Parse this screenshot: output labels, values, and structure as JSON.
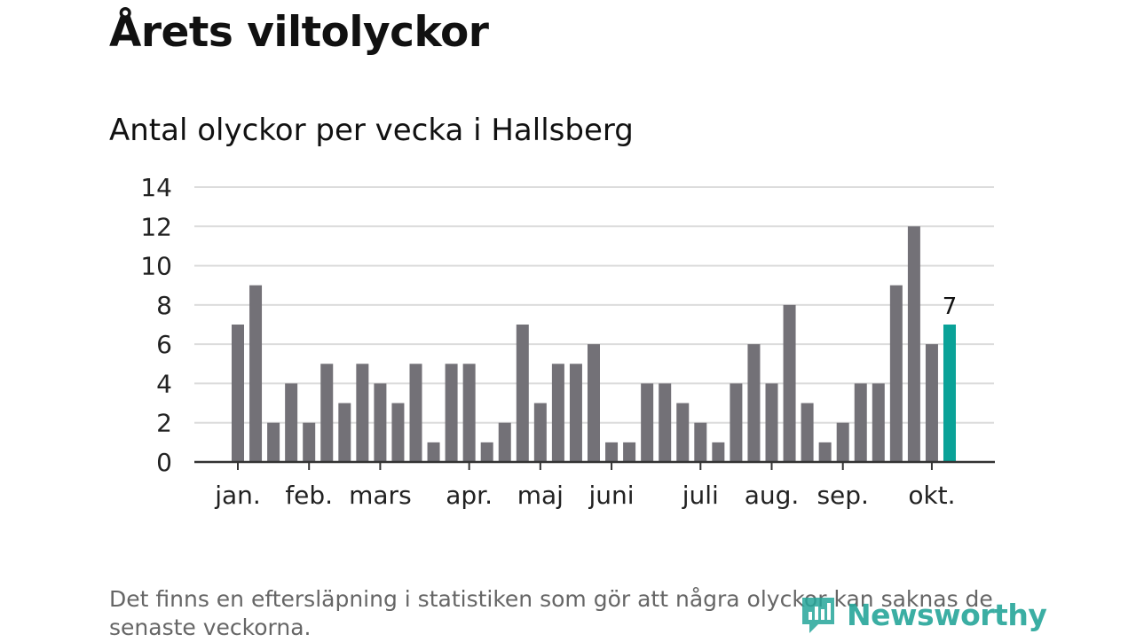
{
  "title": "Årets viltolyckor",
  "footnote": "Det finns en eftersläpning i statistiken som gör att några olyckor kan saknas de senaste veckorna.",
  "logo": {
    "text": "Newsworthy",
    "icon": "newsworthy-logo-icon",
    "color": "#26a69a"
  },
  "chart_data": {
    "type": "bar",
    "title": "Antal olyckor per vecka i Hallsberg",
    "xlabel": "",
    "ylabel": "",
    "ylim": [
      0,
      14
    ],
    "y_ticks": [
      "0",
      "2",
      "4",
      "6",
      "8",
      "10",
      "12",
      "14"
    ],
    "grid": true,
    "weeks": [
      1,
      2,
      3,
      4,
      5,
      6,
      7,
      8,
      9,
      10,
      11,
      12,
      13,
      14,
      15,
      16,
      17,
      18,
      19,
      20,
      21,
      22,
      23,
      24,
      25,
      26,
      27,
      28,
      29,
      30,
      31,
      32,
      33,
      34,
      35,
      36,
      37,
      38,
      39,
      40,
      41
    ],
    "values": [
      7,
      9,
      2,
      4,
      2,
      5,
      3,
      5,
      4,
      3,
      5,
      1,
      5,
      5,
      1,
      2,
      7,
      3,
      5,
      5,
      6,
      1,
      1,
      4,
      4,
      3,
      2,
      1,
      4,
      6,
      4,
      8,
      3,
      1,
      2,
      4,
      4,
      9,
      12,
      6,
      7
    ],
    "month_labels": [
      {
        "label": "jan.",
        "week": 1
      },
      {
        "label": "feb.",
        "week": 5
      },
      {
        "label": "mars",
        "week": 9
      },
      {
        "label": "apr.",
        "week": 14
      },
      {
        "label": "maj",
        "week": 18
      },
      {
        "label": "juni",
        "week": 22
      },
      {
        "label": "juli",
        "week": 27
      },
      {
        "label": "aug.",
        "week": 31
      },
      {
        "label": "sep.",
        "week": 35
      },
      {
        "label": "okt.",
        "week": 40
      }
    ],
    "highlight": {
      "week": 41,
      "label": "7"
    },
    "colors": {
      "bar": "#737177",
      "highlight": "#0aa298",
      "grid": "#dcdcdc",
      "axis": "#333333"
    }
  }
}
